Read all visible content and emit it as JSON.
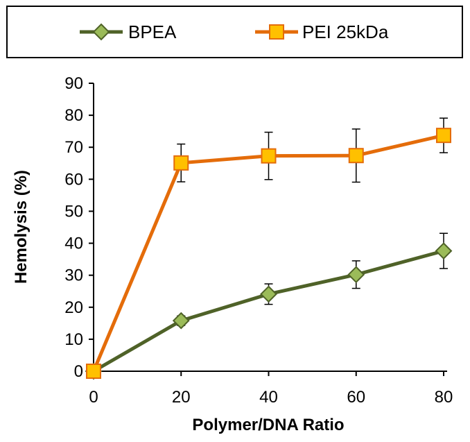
{
  "chart_data": {
    "type": "line",
    "title": "",
    "xlabel": "Polymer/DNA Ratio",
    "ylabel": "Hemolysis (%)",
    "x": [
      0,
      20,
      40,
      60,
      80
    ],
    "xlim": [
      0,
      80
    ],
    "ylim": [
      0,
      90
    ],
    "xticks": [
      "0",
      "20",
      "40",
      "60",
      "80"
    ],
    "yticks": [
      "0",
      "10",
      "20",
      "30",
      "40",
      "50",
      "60",
      "70",
      "80",
      "90"
    ],
    "grid": false,
    "legend_position": "top",
    "series": [
      {
        "name": "BPEA",
        "values": [
          0,
          15.8,
          24.1,
          30.2,
          37.6
        ],
        "errors": [
          0,
          1.5,
          3.2,
          4.3,
          5.5
        ],
        "color": "#4f6228",
        "marker_fill": "#9bbb59",
        "marker": "diamond"
      },
      {
        "name": "PEI 25kDa",
        "values": [
          0,
          65.1,
          67.3,
          67.4,
          73.7
        ],
        "errors": [
          0,
          5.9,
          7.4,
          8.3,
          5.4
        ],
        "color": "#e46c0a",
        "marker_fill": "#ffc000",
        "marker": "square"
      }
    ]
  }
}
